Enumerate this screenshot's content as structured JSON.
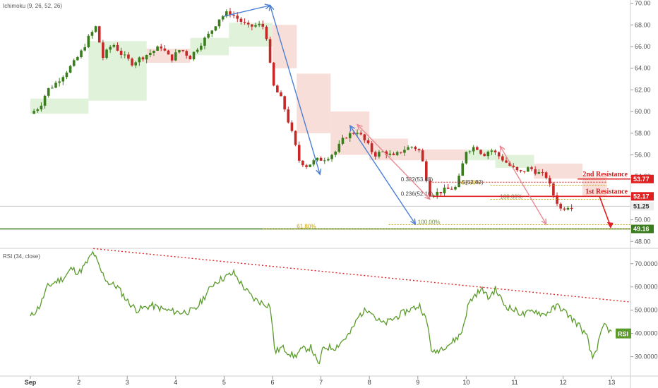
{
  "chart_data": [
    {
      "type": "candlestick",
      "indicator_label": "Ichimoku (9, 26, 52, 26)",
      "x_ticks": [
        "Sep",
        "2",
        "3",
        "4",
        "5",
        "6",
        "7",
        "8",
        "9",
        "10",
        "11",
        "12",
        "13"
      ],
      "y_ticks": [
        "70.00",
        "68.00",
        "66.00",
        "64.00",
        "62.00",
        "60.00",
        "58.00",
        "56.00",
        "54.00",
        "52.00",
        "50.00",
        "48.00"
      ],
      "ylim": [
        47.5,
        70.3
      ],
      "price_path": [
        [
          0.0,
          59.8
        ],
        [
          0.2,
          60.5
        ],
        [
          0.35,
          62.0
        ],
        [
          0.5,
          62.5
        ],
        [
          0.7,
          63.5
        ],
        [
          0.9,
          64.5
        ],
        [
          1.05,
          65.5
        ],
        [
          1.2,
          66.8
        ],
        [
          1.35,
          67.8
        ],
        [
          1.5,
          65.0
        ],
        [
          1.7,
          66.3
        ],
        [
          1.9,
          65.2
        ],
        [
          2.1,
          64.5
        ],
        [
          2.3,
          65.0
        ],
        [
          2.5,
          65.5
        ],
        [
          2.7,
          66.0
        ],
        [
          2.9,
          64.8
        ],
        [
          3.1,
          65.8
        ],
        [
          3.3,
          65.0
        ],
        [
          3.5,
          66.2
        ],
        [
          3.7,
          67.2
        ],
        [
          3.9,
          68.6
        ],
        [
          4.1,
          69.2
        ],
        [
          4.3,
          68.5
        ],
        [
          4.5,
          67.8
        ],
        [
          4.7,
          68.0
        ],
        [
          4.85,
          67.8
        ],
        [
          5.0,
          62.5
        ],
        [
          5.2,
          61.0
        ],
        [
          5.4,
          58.0
        ],
        [
          5.55,
          55.5
        ],
        [
          5.7,
          55.0
        ],
        [
          5.9,
          55.5
        ],
        [
          6.1,
          55.7
        ],
        [
          6.3,
          56.3
        ],
        [
          6.5,
          57.7
        ],
        [
          6.75,
          58.2
        ],
        [
          6.95,
          57.0
        ],
        [
          7.1,
          56.0
        ],
        [
          7.3,
          56.3
        ],
        [
          7.5,
          55.8
        ],
        [
          7.7,
          56.5
        ],
        [
          7.9,
          56.8
        ],
        [
          8.05,
          56.3
        ],
        [
          8.25,
          52.4
        ],
        [
          8.4,
          52.5
        ],
        [
          8.6,
          52.8
        ],
        [
          8.8,
          53.0
        ],
        [
          9.0,
          56.4
        ],
        [
          9.2,
          56.8
        ],
        [
          9.35,
          56.0
        ],
        [
          9.5,
          56.5
        ],
        [
          9.7,
          55.8
        ],
        [
          9.9,
          55.0
        ],
        [
          10.1,
          54.3
        ],
        [
          10.3,
          54.8
        ],
        [
          10.5,
          54.3
        ],
        [
          10.65,
          54.0
        ],
        [
          10.8,
          52.3
        ],
        [
          10.95,
          51.0
        ],
        [
          11.1,
          51.3
        ],
        [
          11.2,
          51.25
        ]
      ],
      "support_line": 49.16,
      "fib_levels": [
        {
          "label": "0.382(53.48)",
          "value": 53.48
        },
        {
          "label": "0.236(52.16)",
          "value": 52.16
        },
        {
          "label": "61.80%",
          "value": 49.16
        },
        {
          "label": "100.00%",
          "value": 49.55
        },
        {
          "label": "61.80%",
          "value": 53.2
        },
        {
          "label": "100.00%",
          "value": 51.9
        }
      ],
      "fib_label_short": "0.5(52.82)",
      "resistances": [
        {
          "label": "2nd Resistance",
          "value": 53.77,
          "badge": "53.77"
        },
        {
          "label": "1st Resistance",
          "value": 52.17,
          "badge": "52.17"
        }
      ],
      "badges": [
        {
          "text": "51.25",
          "value": 51.25,
          "color": "#eeeeee"
        },
        {
          "text": "49.16",
          "value": 49.16,
          "color": "#3a7d1c"
        }
      ],
      "colors": {
        "up": "#3a7d1c",
        "down": "#c62828",
        "cloud_bull": "#d8efd0",
        "cloud_bear": "#f6d6d0",
        "arrow_blue": "#4a7fd4",
        "arrow_pink": "#e88a93",
        "resistance": "#e02020",
        "fib": "#c8a000",
        "rsi_line": "#5a9b2a"
      }
    },
    {
      "type": "line",
      "indicator_label": "RSI (34, close)",
      "legend_label": "RSI",
      "y_ticks": [
        "70.0000",
        "60.0000",
        "50.0000",
        "40.0000",
        "30.0000"
      ],
      "ylim": [
        22,
        76
      ],
      "series": [
        {
          "values": [
            [
              0.0,
              47
            ],
            [
              0.2,
              52
            ],
            [
              0.35,
              60
            ],
            [
              0.5,
              62
            ],
            [
              0.7,
              64
            ],
            [
              0.85,
              68
            ],
            [
              1.0,
              66
            ],
            [
              1.15,
              70
            ],
            [
              1.3,
              75
            ],
            [
              1.45,
              67
            ],
            [
              1.6,
              62
            ],
            [
              1.8,
              60
            ],
            [
              2.0,
              54
            ],
            [
              2.2,
              50
            ],
            [
              2.5,
              52
            ],
            [
              2.8,
              50
            ],
            [
              3.1,
              49
            ],
            [
              3.4,
              50
            ],
            [
              3.6,
              56
            ],
            [
              3.8,
              62
            ],
            [
              4.0,
              64
            ],
            [
              4.2,
              66
            ],
            [
              4.4,
              60
            ],
            [
              4.6,
              55
            ],
            [
              4.8,
              53
            ],
            [
              4.95,
              52
            ],
            [
              5.05,
              32
            ],
            [
              5.2,
              34
            ],
            [
              5.45,
              30
            ],
            [
              5.6,
              33
            ],
            [
              5.8,
              34
            ],
            [
              5.95,
              26
            ],
            [
              6.05,
              34
            ],
            [
              6.3,
              34
            ],
            [
              6.6,
              40
            ],
            [
              6.8,
              48
            ],
            [
              7.0,
              51
            ],
            [
              7.15,
              46
            ],
            [
              7.3,
              44
            ],
            [
              7.55,
              47
            ],
            [
              7.8,
              50
            ],
            [
              8.05,
              52
            ],
            [
              8.2,
              44
            ],
            [
              8.3,
              31
            ],
            [
              8.5,
              34
            ],
            [
              8.7,
              36
            ],
            [
              8.9,
              40
            ],
            [
              9.05,
              53
            ],
            [
              9.2,
              57
            ],
            [
              9.35,
              59
            ],
            [
              9.45,
              55
            ],
            [
              9.6,
              59
            ],
            [
              9.8,
              52
            ],
            [
              10.0,
              50
            ],
            [
              10.2,
              48
            ],
            [
              10.4,
              50
            ],
            [
              10.6,
              48
            ],
            [
              10.75,
              50
            ],
            [
              10.9,
              52
            ],
            [
              11.05,
              49
            ],
            [
              11.2,
              46
            ],
            [
              11.35,
              43
            ],
            [
              11.5,
              38
            ],
            [
              11.6,
              29
            ],
            [
              11.7,
              34
            ],
            [
              11.85,
              44
            ],
            [
              12.0,
              40
            ]
          ]
        }
      ],
      "trendline": [
        [
          1.3,
          76.5
        ],
        [
          12.4,
          53.5
        ]
      ]
    }
  ]
}
